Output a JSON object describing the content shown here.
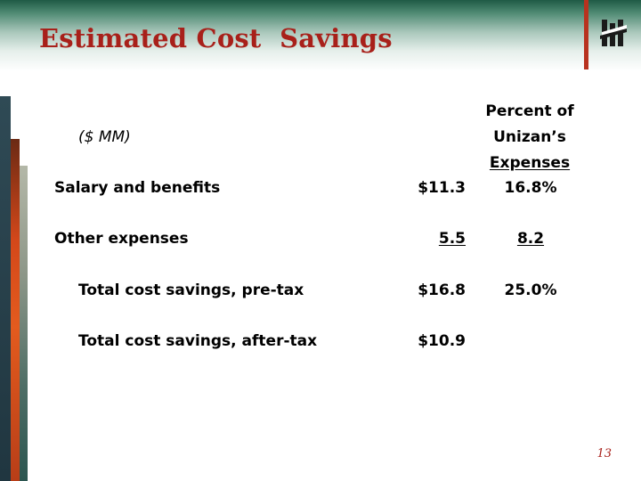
{
  "slide": {
    "title": "Estimated Cost  Savings",
    "page_number": "13"
  },
  "table": {
    "unit_label": "($ MM)",
    "column_header": [
      "Percent of",
      "Unizan’s",
      "Expenses"
    ],
    "rows": [
      {
        "label": "Salary and benefits",
        "amount": "$11.3",
        "percent": "16.8%"
      },
      {
        "label": "Other expenses",
        "amount": "5.5",
        "percent": "8.2"
      },
      {
        "label": "Total cost savings, pre-tax",
        "amount": "$16.8",
        "percent": "25.0%"
      },
      {
        "label": "Total cost savings, after-tax",
        "amount": "$10.9",
        "percent": ""
      }
    ]
  },
  "colors": {
    "title": "#a8201a",
    "header_band": "#1f5a45",
    "accent_bar": "#b8321f"
  },
  "icons": {
    "logo": "bank-logo-icon"
  }
}
